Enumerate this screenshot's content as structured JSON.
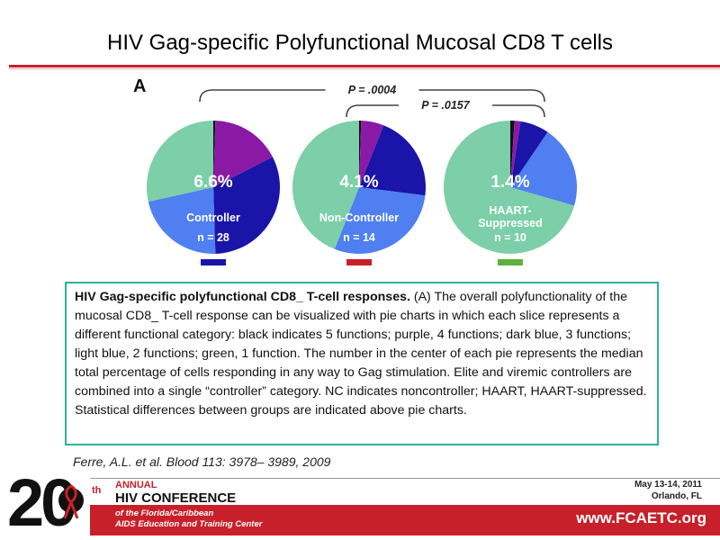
{
  "slide": {
    "title": "HIV Gag-specific Polyfunctional Mucosal CD8 T cells",
    "panel_label": "A"
  },
  "chart_data": {
    "type": "pie",
    "panel_label": "A",
    "category_legend": {
      "5 functions": "#111111",
      "4 functions": "#8a1aa6",
      "3 functions": "#1a14a8",
      "2 functions": "#4f7ff0",
      "1 function": "#7ccfa8"
    },
    "pies": [
      {
        "center_value": "6.6%",
        "group": "Controller",
        "n_label": "n = 28",
        "color_key": "#1a14a8",
        "slices": [
          {
            "category": "5 functions",
            "value": 0.5
          },
          {
            "category": "4 functions",
            "value": 17
          },
          {
            "category": "3 functions",
            "value": 32
          },
          {
            "category": "2 functions",
            "value": 22
          },
          {
            "category": "1 function",
            "value": 28.5
          }
        ]
      },
      {
        "center_value": "4.1%",
        "group": "Non-Controller",
        "n_label": "n = 14",
        "color_key": "#c8202a",
        "slices": [
          {
            "category": "5 functions",
            "value": 0.5
          },
          {
            "category": "4 functions",
            "value": 5.5
          },
          {
            "category": "3 functions",
            "value": 21
          },
          {
            "category": "2 functions",
            "value": 29
          },
          {
            "category": "1 function",
            "value": 44
          }
        ]
      },
      {
        "center_value": "1.4%",
        "group": "HAART-\nSuppressed",
        "n_label": "n = 10",
        "color_key": "#5fb03c",
        "slices": [
          {
            "category": "5 functions",
            "value": 1
          },
          {
            "category": "4 functions",
            "value": 1.5
          },
          {
            "category": "3 functions",
            "value": 7
          },
          {
            "category": "2 functions",
            "value": 20
          },
          {
            "category": "1 function",
            "value": 70.5
          }
        ]
      }
    ],
    "comparisons": [
      {
        "label": "P = .0004",
        "from": 0,
        "to": 2
      },
      {
        "label": "P = .0157",
        "from": 1,
        "to": 2
      }
    ]
  },
  "caption": {
    "bold": "HIV Gag-specific polyfunctional CD8_ T-cell responses.",
    "text": " (A) The overall polyfunctionality of the mucosal CD8_ T-cell response can be visualized with pie charts in which each slice represents a different functional category: black indicates 5 functions; purple, 4 functions; dark blue, 3 functions; light blue, 2 functions; green, 1 function. The number in the center of each pie represents the median total percentage of cells responding in any way to Gag stimulation. Elite and viremic controllers are combined into a single “controller” category. NC indicates noncontroller; HAART, HAART-suppressed. Statistical differences between groups are indicated above pie charts."
  },
  "citation": "Ferre, A.L. et al. Blood 113: 3978– 3989, 2009",
  "footer": {
    "twenty": "20",
    "th": "th",
    "annual": "ANNUAL",
    "conference": "HIV CONFERENCE",
    "org_line1": "of the Florida/Caribbean",
    "org_line2": "AIDS Education and Training Center",
    "dates": "May 13-14, 2011",
    "place": "Orlando, FL",
    "website": "www.FCAETC.org"
  },
  "colors": {
    "accent_red": "#c8202a",
    "caption_border": "#2bb39a"
  }
}
